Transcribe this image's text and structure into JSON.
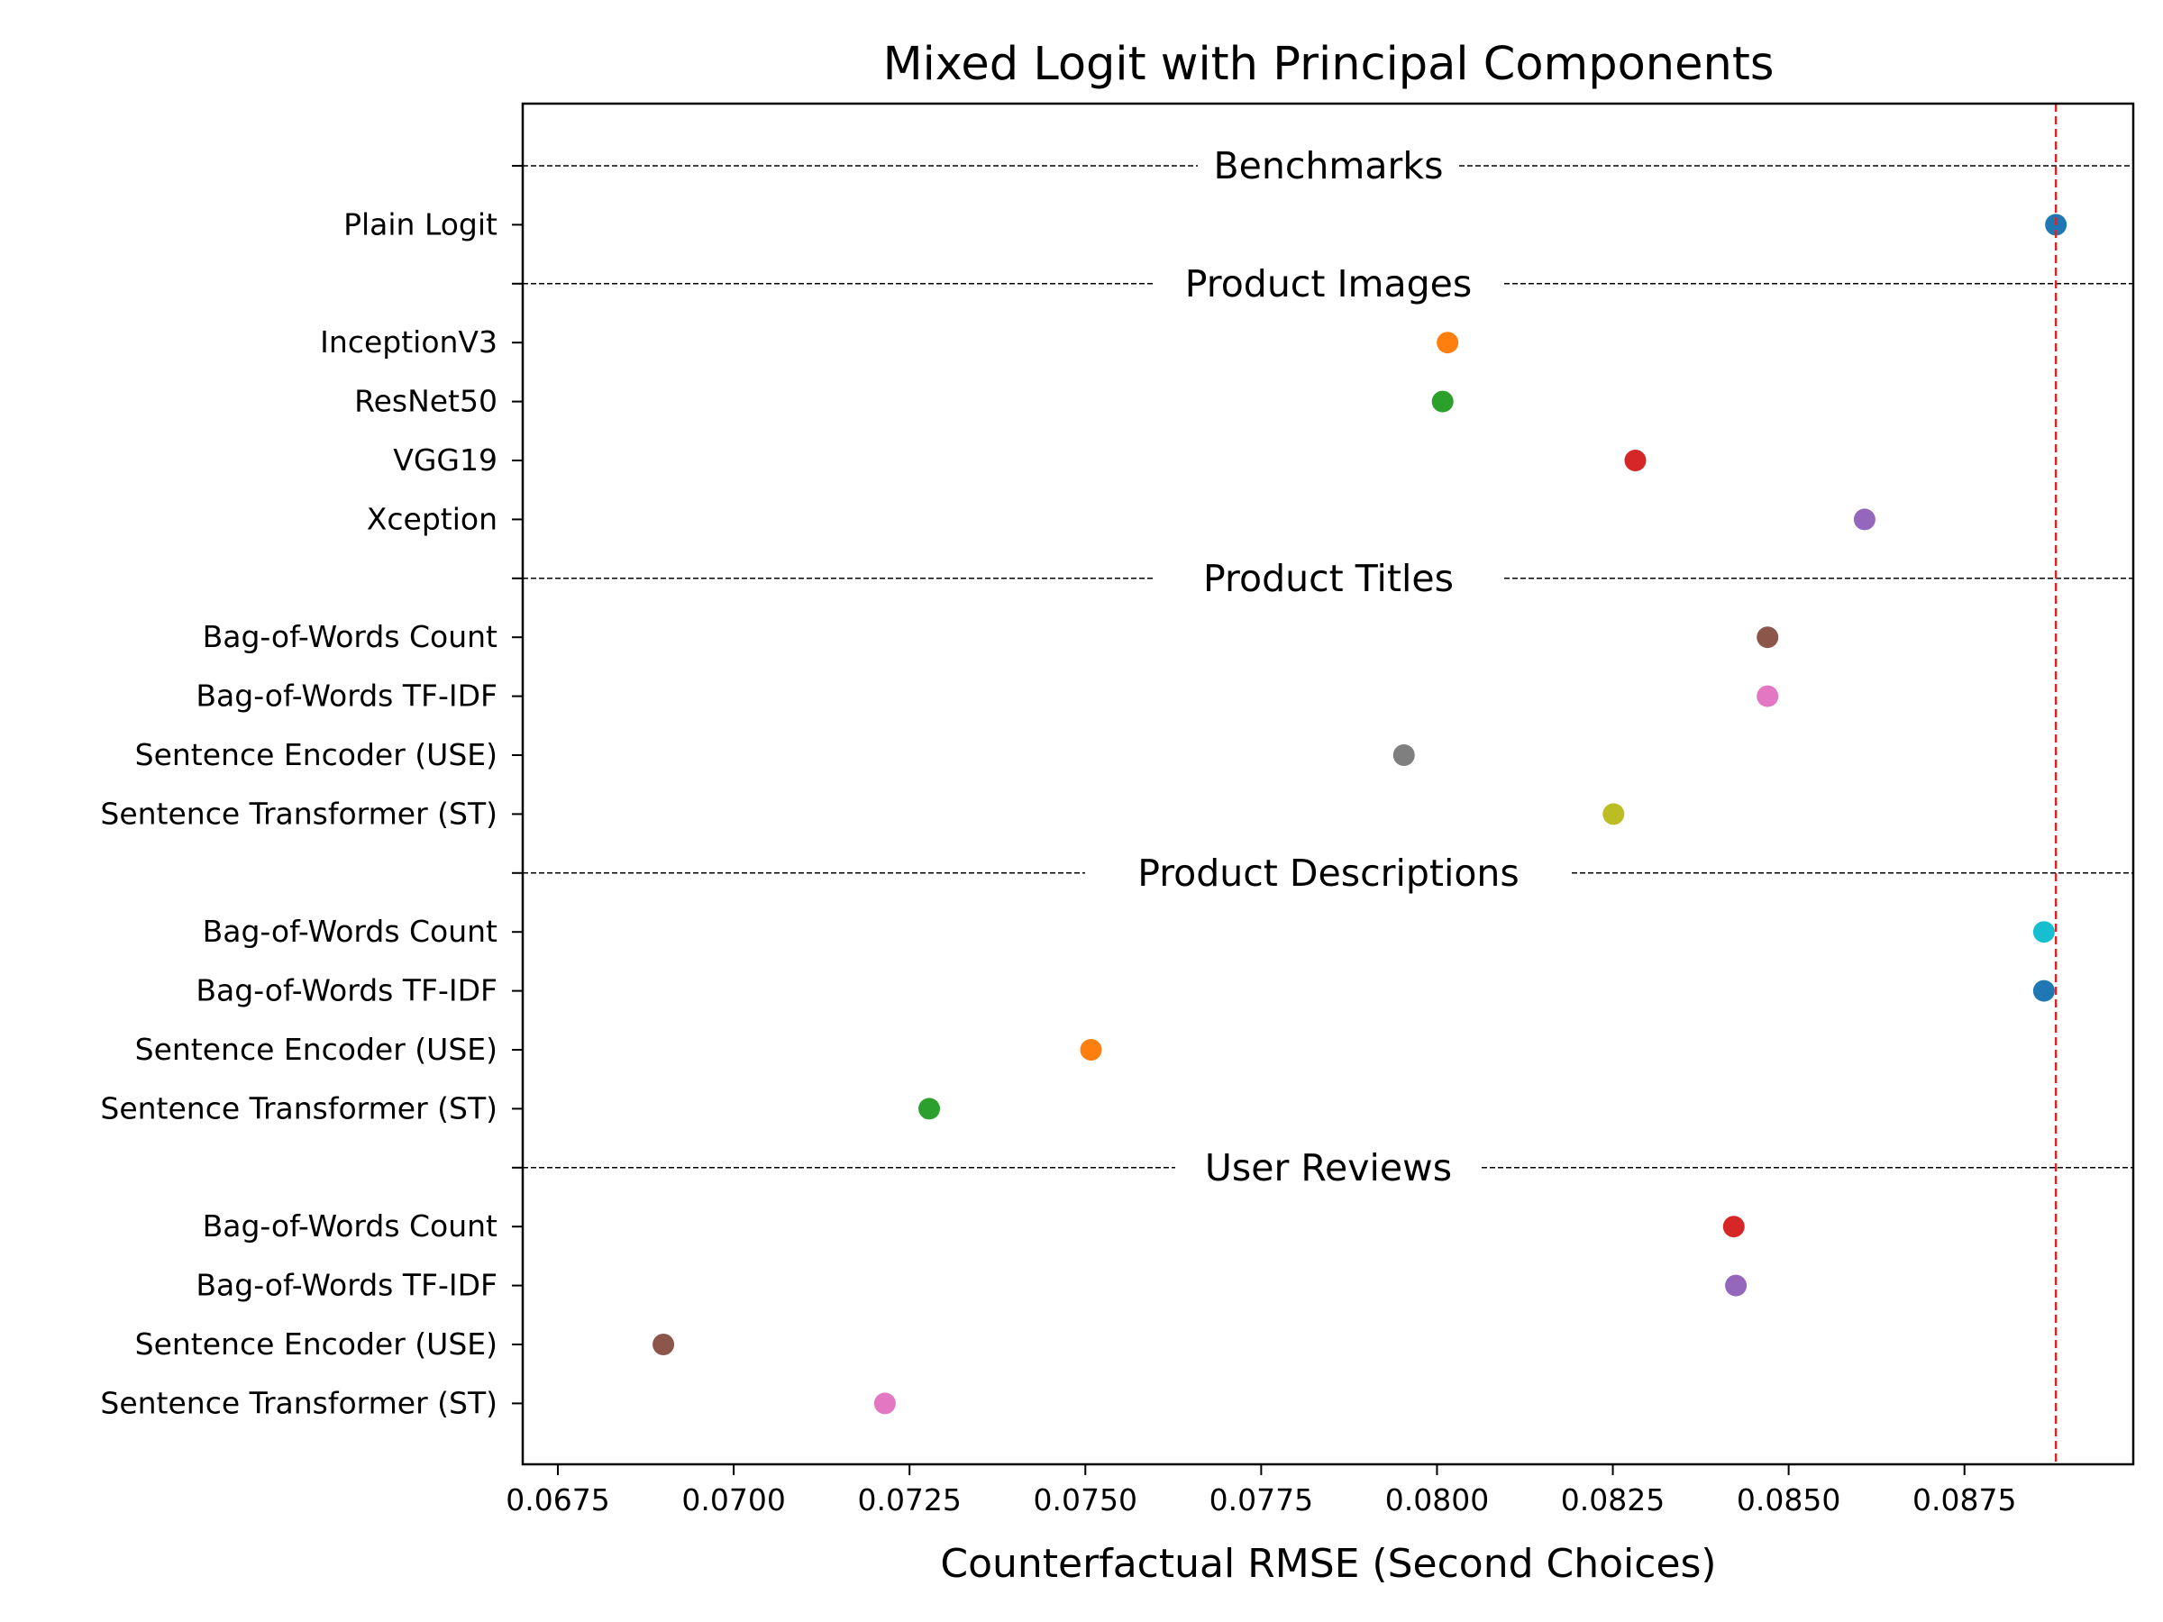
{
  "chart_data": {
    "type": "scatter",
    "title": "Mixed Logit with Principal Components",
    "xlabel": "Counterfactual RMSE (Second Choices)",
    "ylabel": "",
    "xlim": [
      0.067,
      0.0899
    ],
    "xticks": [
      "0.0675",
      "0.0700",
      "0.0725",
      "0.0750",
      "0.0775",
      "0.0800",
      "0.0825",
      "0.0850",
      "0.0875"
    ],
    "grid": false,
    "reference_line": {
      "x": 0.0888,
      "color": "#d62728",
      "style": "dashed"
    },
    "groups": [
      {
        "label": "Benchmarks",
        "rows": [
          {
            "label": "Plain Logit",
            "value": 0.0888,
            "color": "#1f77b4"
          }
        ]
      },
      {
        "label": "Product Images",
        "rows": [
          {
            "label": "InceptionV3",
            "value": 0.08015,
            "color": "#ff7f0e"
          },
          {
            "label": "ResNet50",
            "value": 0.08008,
            "color": "#2ca02c"
          },
          {
            "label": "VGG19",
            "value": 0.08282,
            "color": "#d62728"
          },
          {
            "label": "Xception",
            "value": 0.08608,
            "color": "#9467bd"
          }
        ]
      },
      {
        "label": "Product Titles",
        "rows": [
          {
            "label": "Bag-of-Words Count",
            "value": 0.0847,
            "color": "#8c564b"
          },
          {
            "label": "Bag-of-Words TF-IDF",
            "value": 0.0847,
            "color": "#e377c2"
          },
          {
            "label": "Sentence Encoder (USE)",
            "value": 0.07953,
            "color": "#7f7f7f"
          },
          {
            "label": "Sentence Transformer (ST)",
            "value": 0.08251,
            "color": "#bcbd22"
          }
        ]
      },
      {
        "label": "Product Descriptions",
        "rows": [
          {
            "label": "Bag-of-Words Count",
            "value": 0.08863,
            "color": "#17becf"
          },
          {
            "label": "Bag-of-Words TF-IDF",
            "value": 0.08863,
            "color": "#1f77b4"
          },
          {
            "label": "Sentence Encoder (USE)",
            "value": 0.07508,
            "color": "#ff7f0e"
          },
          {
            "label": "Sentence Transformer (ST)",
            "value": 0.07278,
            "color": "#2ca02c"
          }
        ]
      },
      {
        "label": "User Reviews",
        "rows": [
          {
            "label": "Bag-of-Words Count",
            "value": 0.08422,
            "color": "#d62728"
          },
          {
            "label": "Bag-of-Words TF-IDF",
            "value": 0.08425,
            "color": "#9467bd"
          },
          {
            "label": "Sentence Encoder (USE)",
            "value": 0.069,
            "color": "#8c564b"
          },
          {
            "label": "Sentence Transformer (ST)",
            "value": 0.07215,
            "color": "#e377c2"
          }
        ]
      }
    ]
  }
}
